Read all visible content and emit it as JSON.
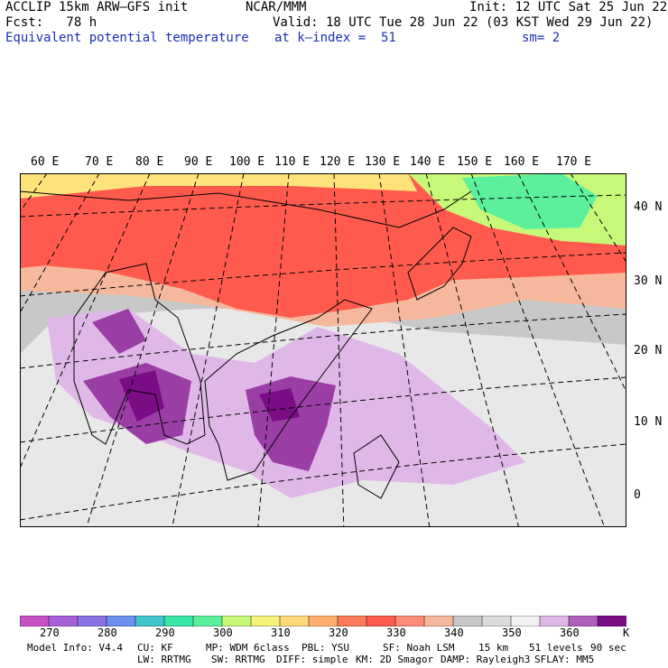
{
  "header": {
    "model": "ACCLIP 15km ARW–GFS init",
    "org": "NCAR/MMM",
    "init": "Init: 12 UTC Sat 25 Jun 22",
    "fcst": "Fcst:   78 h",
    "valid": "Valid: 18 UTC Tue 28 Jun 22 (03 KST Wed 29 Jun 22)",
    "field": "Equivalent potential temperature",
    "level": "at k–index =  51",
    "smooth": "sm= 2"
  },
  "map": {
    "lon_labels": [
      "60 E",
      "70 E",
      "80 E",
      "90 E",
      "100 E",
      "110 E",
      "120 E",
      "130 E",
      "140 E",
      "150 E",
      "160 E",
      "170 E"
    ],
    "lat_labels": [
      "40 N",
      "30 N",
      "20 N",
      "10 N",
      "0"
    ],
    "colors": {
      "hot": "#ff5a4e",
      "warm": "#ff8c70",
      "peach": "#f5b89c",
      "gray": "#c8c8c8",
      "lightgray": "#e8e8e8",
      "lilac": "#e0b8e8",
      "purple": "#9a3ea6",
      "darkpurple": "#7a0c86",
      "yellow": "#ffe27a",
      "green": "#5cf09c",
      "lime": "#c8f878"
    }
  },
  "colorbar": {
    "colors": [
      "#c64fc6",
      "#a760d8",
      "#8a73e6",
      "#6c8ff0",
      "#3fc6cc",
      "#38e6a8",
      "#5cf09c",
      "#c8f878",
      "#f4f27a",
      "#ffd87a",
      "#ffb070",
      "#ff7c5a",
      "#ff5a4e",
      "#ff8c78",
      "#f5b89c",
      "#c8c8c8",
      "#dcdcdc",
      "#f2f2f2",
      "#e0b8e8",
      "#b15fbd",
      "#7a0c86"
    ],
    "labels": [
      "270",
      "280",
      "290",
      "300",
      "310",
      "320",
      "330",
      "340",
      "350",
      "360"
    ],
    "unit": "K"
  },
  "footer": {
    "line1": [
      "Model Info: V4.4",
      "CU: KF",
      "MP: WDM 6class",
      "PBL: YSU",
      "SF: Noah LSM",
      "15 km",
      "51 levels",
      "90 sec"
    ],
    "line2": [
      "LW: RRTMG",
      "SW: RRTMG",
      "DIFF: simple",
      "KM: 2D Smagor",
      "DAMP: Rayleigh3",
      "SFLAY: MM5"
    ]
  }
}
